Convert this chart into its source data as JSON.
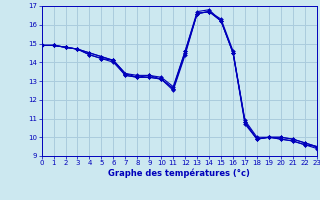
{
  "xlabel": "Graphe des températures (°c)",
  "bg_color": "#cce8f0",
  "line_color": "#0000bb",
  "grid_color": "#aaccdd",
  "xlim": [
    0,
    23
  ],
  "ylim": [
    9,
    17
  ],
  "xticks": [
    0,
    1,
    2,
    3,
    4,
    5,
    6,
    7,
    8,
    9,
    10,
    11,
    12,
    13,
    14,
    15,
    16,
    17,
    18,
    19,
    20,
    21,
    22,
    23
  ],
  "yticks": [
    9,
    10,
    11,
    12,
    13,
    14,
    15,
    16,
    17
  ],
  "series": [
    [
      14.9,
      14.9,
      14.8,
      14.7,
      14.4,
      14.2,
      14.0,
      13.3,
      13.2,
      13.2,
      13.1,
      12.5,
      14.4,
      16.6,
      16.7,
      16.3,
      14.6,
      10.8,
      9.9,
      10.0,
      10.0,
      9.9,
      9.7,
      9.5
    ],
    [
      14.9,
      14.9,
      14.8,
      14.7,
      14.5,
      14.3,
      14.1,
      13.4,
      13.2,
      13.2,
      13.1,
      12.6,
      14.5,
      16.6,
      16.7,
      16.2,
      14.5,
      10.7,
      9.9,
      10.0,
      9.9,
      9.8,
      9.6,
      9.4
    ],
    [
      14.9,
      14.9,
      14.8,
      14.7,
      14.4,
      14.2,
      14.1,
      13.3,
      13.2,
      13.3,
      13.1,
      12.6,
      14.6,
      16.6,
      16.7,
      16.2,
      14.5,
      10.8,
      9.9,
      10.0,
      9.9,
      9.8,
      9.6,
      9.5
    ],
    [
      14.9,
      14.9,
      14.8,
      14.7,
      14.5,
      14.3,
      14.1,
      13.4,
      13.3,
      13.3,
      13.2,
      12.7,
      14.6,
      16.7,
      16.8,
      16.2,
      14.5,
      10.9,
      10.0,
      10.0,
      10.0,
      9.9,
      9.7,
      9.5
    ]
  ]
}
